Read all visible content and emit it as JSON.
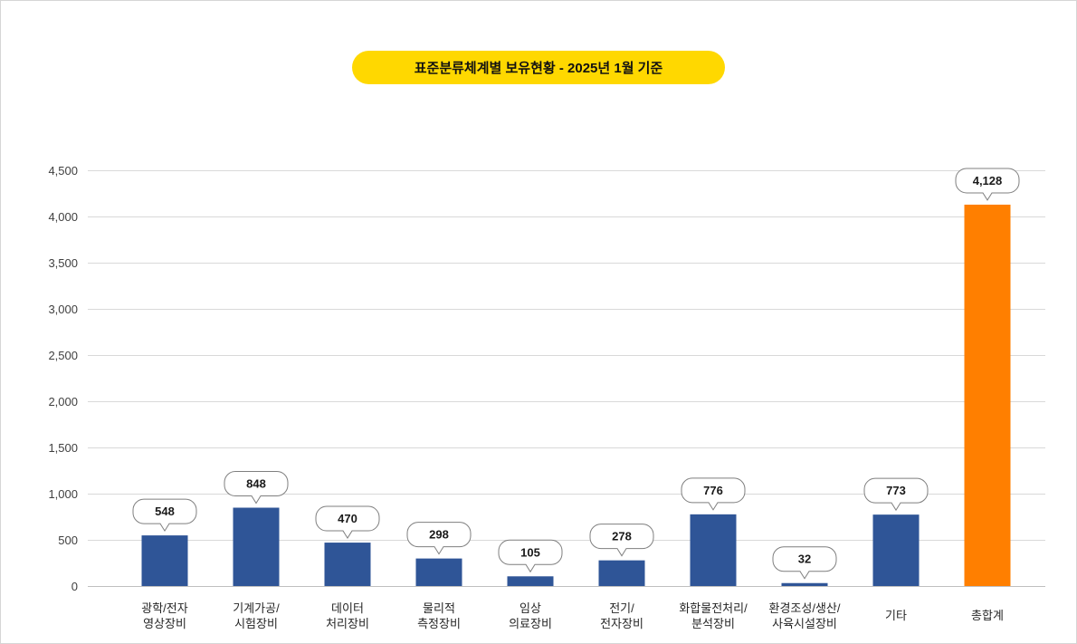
{
  "chart_data": {
    "type": "bar",
    "title": "표준분류체계별 보유현황 - 2025년 1월 기준",
    "categories": [
      [
        "광학/전자",
        "영상장비"
      ],
      [
        "기계가공/",
        "시험장비"
      ],
      [
        "데이터",
        "처리장비"
      ],
      [
        "물리적",
        "측정장비"
      ],
      [
        "임상",
        "의료장비"
      ],
      [
        "전기/",
        "전자장비"
      ],
      [
        "화합물전처리/",
        "분석장비"
      ],
      [
        "환경조성/생산/",
        "사육시설장비"
      ],
      [
        "기타"
      ],
      [
        "총합계"
      ]
    ],
    "values": [
      548,
      848,
      470,
      298,
      105,
      278,
      776,
      32,
      773,
      4128
    ],
    "value_labels": [
      "548",
      "848",
      "470",
      "298",
      "105",
      "278",
      "776",
      "32",
      "773",
      "4,128"
    ],
    "yticks": [
      0,
      500,
      1000,
      1500,
      2000,
      2500,
      3000,
      3500,
      4000,
      4500
    ],
    "ytick_labels": [
      "0",
      "500",
      "1,000",
      "1,500",
      "2,000",
      "2,500",
      "3,000",
      "3,500",
      "4,000",
      "4,500"
    ],
    "ylim": [
      0,
      4500
    ],
    "grid": true,
    "bar_colors": [
      "#2F5597",
      "#2F5597",
      "#2F5597",
      "#2F5597",
      "#2F5597",
      "#2F5597",
      "#2F5597",
      "#2F5597",
      "#2F5597",
      "#FF7F00"
    ]
  },
  "colors": {
    "title_background": "#FFD800",
    "bar": "#2F5597",
    "total_bar": "#FF7F00",
    "gridline": "#D9D9D9"
  }
}
